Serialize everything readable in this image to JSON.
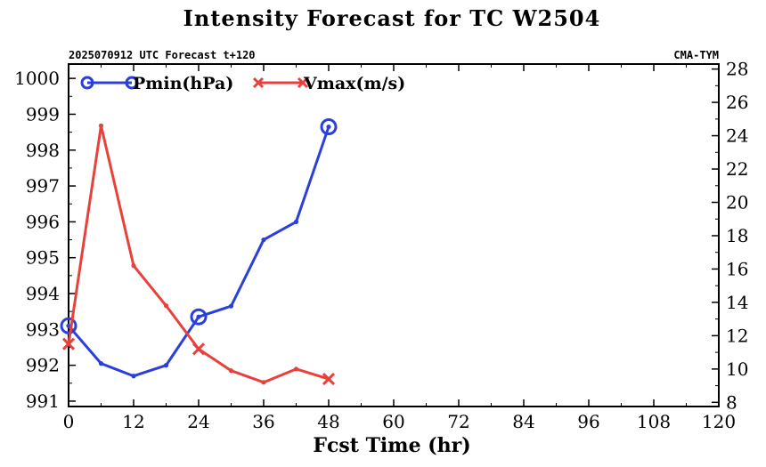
{
  "chart_data": {
    "type": "line",
    "title": "Intensity Forecast for TC W2504",
    "subtitle_left": "2025070912 UTC Forecast t+120",
    "subtitle_right": "CMA-TYM",
    "xlabel": "Fcst Time (hr)",
    "xlim": [
      0,
      120
    ],
    "x_ticks": [
      0,
      12,
      24,
      36,
      48,
      60,
      72,
      84,
      96,
      108,
      120
    ],
    "y_left_lim": [
      991,
      1000
    ],
    "y_left_ticks": [
      991,
      992,
      993,
      994,
      995,
      996,
      997,
      998,
      999,
      1000
    ],
    "y_right_lim": [
      8,
      28
    ],
    "y_right_ticks": [
      8,
      10,
      12,
      14,
      16,
      18,
      20,
      22,
      24,
      26,
      28
    ],
    "legend_placement": "top-left",
    "series": [
      {
        "name": "Pmin(hPa)",
        "axis": "left",
        "color": "#2a3fdc",
        "marker": "circle",
        "x": [
          0,
          6,
          12,
          18,
          24,
          30,
          36,
          42,
          48
        ],
        "values": [
          993.1,
          992.05,
          991.7,
          992.0,
          993.35,
          993.65,
          995.5,
          996.0,
          998.65
        ],
        "major_marker_x": [
          0,
          24,
          48
        ]
      },
      {
        "name": "Vmax(m/s)",
        "axis": "right",
        "color": "#e8413c",
        "marker": "x",
        "x": [
          0,
          6,
          12,
          18,
          24,
          30,
          36,
          42,
          48
        ],
        "values": [
          11.5,
          24.6,
          16.2,
          13.8,
          11.2,
          9.9,
          9.2,
          10.0,
          9.4
        ],
        "major_marker_x": [
          0,
          24,
          48
        ]
      }
    ]
  }
}
